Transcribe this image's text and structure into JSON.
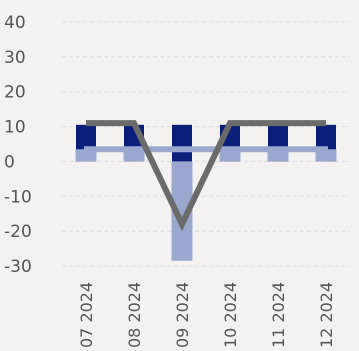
{
  "chart_data": {
    "type": "bar",
    "title": "",
    "xlabel": "",
    "ylabel": "",
    "ylim": [
      -30,
      40
    ],
    "yticks": [
      40,
      30,
      20,
      10,
      0,
      -10,
      -20,
      -30
    ],
    "yticks_text": [
      "40",
      "30",
      "20",
      "10",
      "0",
      "-10",
      "-20",
      "-30"
    ],
    "grid": "horizontal dashed",
    "legend": "none",
    "categories": [
      "07 2024",
      "08 2024",
      "09 2024",
      "10 2024",
      "11 2024",
      "12 2024"
    ],
    "series": [
      {
        "kind": "bar",
        "color": "#0a1f7a",
        "values": [
          10.5,
          10.5,
          10.5,
          10.5,
          10.5,
          10.5
        ]
      },
      {
        "kind": "bar",
        "color": "#9aa7cf",
        "values": [
          3.5,
          3.5,
          -28.5,
          3.5,
          3.5,
          3.5
        ]
      },
      {
        "kind": "line",
        "color": "#6b6b6b",
        "values": [
          11,
          11,
          -18,
          11,
          11,
          11
        ]
      }
    ],
    "colors": {
      "background": "#f3f2f1",
      "grid": "#d9d9d9",
      "text": "#555555"
    }
  }
}
